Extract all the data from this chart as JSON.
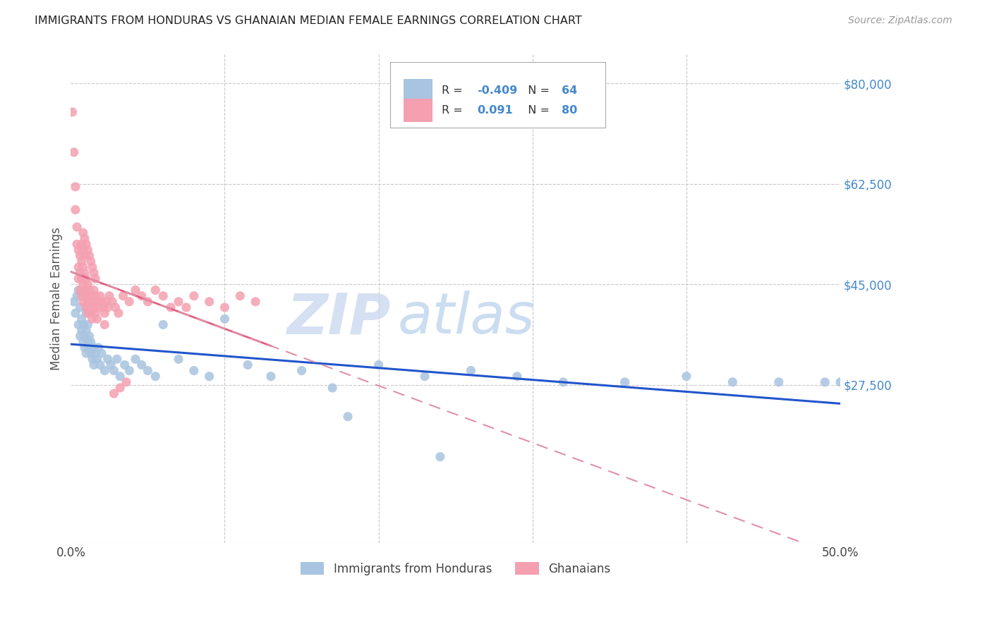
{
  "title": "IMMIGRANTS FROM HONDURAS VS GHANAIAN MEDIAN FEMALE EARNINGS CORRELATION CHART",
  "source": "Source: ZipAtlas.com",
  "ylabel": "Median Female Earnings",
  "xlim": [
    0.0,
    0.5
  ],
  "ylim": [
    0,
    85000
  ],
  "yticks": [
    0,
    27500,
    45000,
    62500,
    80000
  ],
  "ytick_labels": [
    "",
    "$27,500",
    "$45,000",
    "$62,500",
    "$80,000"
  ],
  "xticks": [
    0.0,
    0.1,
    0.2,
    0.3,
    0.4,
    0.5
  ],
  "xtick_labels": [
    "0.0%",
    "",
    "",
    "",
    "",
    "50.0%"
  ],
  "legend_blue_label": "Immigrants from Honduras",
  "legend_pink_label": "Ghanaians",
  "R_blue": -0.409,
  "N_blue": 64,
  "R_pink": 0.091,
  "N_pink": 80,
  "blue_color": "#a8c4e0",
  "pink_color": "#f4a0b0",
  "blue_line_color": "#2255cc",
  "pink_solid_color": "#e06080",
  "pink_dashed_color": "#e090a8",
  "grid_color": "#c8c8c8",
  "right_tick_color": "#4488cc",
  "watermark_zip_color": "#c8d8ee",
  "watermark_atlas_color": "#b0cce8",
  "blue_scatter_x": [
    0.002,
    0.003,
    0.004,
    0.005,
    0.005,
    0.006,
    0.006,
    0.007,
    0.007,
    0.008,
    0.008,
    0.009,
    0.009,
    0.01,
    0.01,
    0.01,
    0.011,
    0.011,
    0.012,
    0.012,
    0.013,
    0.013,
    0.014,
    0.015,
    0.015,
    0.016,
    0.017,
    0.018,
    0.019,
    0.02,
    0.022,
    0.024,
    0.026,
    0.028,
    0.03,
    0.032,
    0.035,
    0.038,
    0.042,
    0.046,
    0.05,
    0.055,
    0.06,
    0.07,
    0.08,
    0.09,
    0.1,
    0.115,
    0.13,
    0.15,
    0.17,
    0.2,
    0.23,
    0.26,
    0.29,
    0.32,
    0.36,
    0.4,
    0.43,
    0.46,
    0.49,
    0.5,
    0.18,
    0.24
  ],
  "blue_scatter_y": [
    42000,
    40000,
    43000,
    38000,
    44000,
    41000,
    36000,
    39000,
    37000,
    35000,
    38000,
    34000,
    36000,
    40000,
    37000,
    33000,
    35000,
    38000,
    34000,
    36000,
    33000,
    35000,
    32000,
    34000,
    31000,
    33000,
    32000,
    34000,
    31000,
    33000,
    30000,
    32000,
    31000,
    30000,
    32000,
    29000,
    31000,
    30000,
    32000,
    31000,
    30000,
    29000,
    38000,
    32000,
    30000,
    29000,
    39000,
    31000,
    29000,
    30000,
    27000,
    31000,
    29000,
    30000,
    29000,
    28000,
    28000,
    29000,
    28000,
    28000,
    28000,
    28000,
    22000,
    15000
  ],
  "pink_scatter_x": [
    0.001,
    0.002,
    0.003,
    0.003,
    0.004,
    0.004,
    0.005,
    0.005,
    0.005,
    0.006,
    0.006,
    0.006,
    0.007,
    0.007,
    0.007,
    0.008,
    0.008,
    0.008,
    0.009,
    0.009,
    0.01,
    0.01,
    0.01,
    0.011,
    0.011,
    0.011,
    0.012,
    0.012,
    0.013,
    0.013,
    0.014,
    0.014,
    0.015,
    0.015,
    0.016,
    0.016,
    0.017,
    0.017,
    0.018,
    0.019,
    0.02,
    0.021,
    0.022,
    0.023,
    0.024,
    0.025,
    0.027,
    0.029,
    0.031,
    0.034,
    0.038,
    0.042,
    0.046,
    0.05,
    0.055,
    0.06,
    0.065,
    0.07,
    0.075,
    0.08,
    0.09,
    0.1,
    0.11,
    0.12,
    0.008,
    0.009,
    0.01,
    0.011,
    0.012,
    0.013,
    0.014,
    0.015,
    0.016,
    0.007,
    0.008,
    0.009,
    0.028,
    0.032,
    0.036,
    0.022
  ],
  "pink_scatter_y": [
    75000,
    68000,
    62000,
    58000,
    55000,
    52000,
    48000,
    51000,
    46000,
    50000,
    47000,
    44000,
    49000,
    46000,
    43000,
    48000,
    45000,
    42000,
    47000,
    44000,
    46000,
    43000,
    41000,
    45000,
    42000,
    40000,
    44000,
    41000,
    43000,
    40000,
    42000,
    39000,
    44000,
    41000,
    43000,
    40000,
    42000,
    39000,
    41000,
    43000,
    42000,
    41000,
    40000,
    42000,
    41000,
    43000,
    42000,
    41000,
    40000,
    43000,
    42000,
    44000,
    43000,
    42000,
    44000,
    43000,
    41000,
    42000,
    41000,
    43000,
    42000,
    41000,
    43000,
    42000,
    54000,
    53000,
    52000,
    51000,
    50000,
    49000,
    48000,
    47000,
    46000,
    52000,
    51000,
    50000,
    26000,
    27000,
    28000,
    38000
  ]
}
